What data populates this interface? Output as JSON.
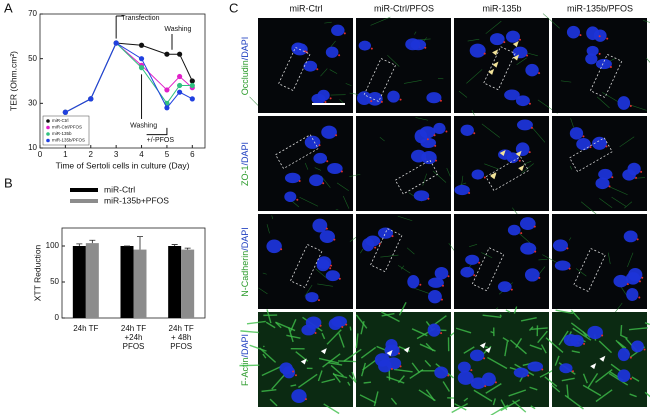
{
  "chart_data": [
    {
      "type": "line",
      "label": "A",
      "ylabel": "TER (Ohm.cm²)",
      "xlabel": "Time of Sertoli cells in culture (Day)",
      "x": [
        1,
        2,
        3,
        4,
        5,
        5.5,
        6
      ],
      "series": [
        {
          "name": "miR-Ctrl",
          "color": "#111111",
          "values": [
            26,
            32,
            57,
            56,
            52,
            52,
            40
          ]
        },
        {
          "name": "miR-Ctrl/PFOS",
          "color": "#e020c8",
          "values": [
            26,
            32,
            57,
            47,
            36,
            42,
            37
          ]
        },
        {
          "name": "miR-135b",
          "color": "#30c080",
          "values": [
            26,
            32,
            57,
            46,
            30,
            38,
            38
          ]
        },
        {
          "name": "miR-135b/PFOS",
          "color": "#2040e0",
          "values": [
            26,
            32,
            57,
            50,
            28,
            35,
            32
          ]
        }
      ],
      "xlim": [
        0,
        6.5
      ],
      "xticks": [
        0,
        1,
        2,
        3,
        4,
        5,
        6
      ],
      "ylim": [
        10,
        70
      ],
      "yticks": [
        10,
        30,
        50,
        70
      ],
      "annotations": [
        "Transfection",
        "Washing",
        "Washing",
        "+/-PFOS"
      ]
    },
    {
      "type": "bar",
      "label": "B",
      "ylabel": "XTT Reduction",
      "categories": [
        "24h TF",
        "24h TF\n+24h\nPFOS",
        "24h TF\n+ 48h\nPFOS"
      ],
      "series": [
        {
          "name": "miR-Ctrl",
          "color": "#000000",
          "values": [
            100,
            100,
            100
          ],
          "errors": [
            3,
            0,
            2
          ]
        },
        {
          "name": "miR-135b+PFOS",
          "color": "#8c8c8c",
          "values": [
            104,
            95,
            95
          ],
          "errors": [
            4,
            18,
            2
          ]
        }
      ],
      "ylim": [
        0,
        125
      ],
      "yticks": [
        0,
        50,
        100
      ]
    }
  ],
  "image_panel": {
    "label": "C",
    "columns": [
      "miR-Ctrl",
      "miR-Ctrl/PFOS",
      "miR-135b",
      "miR-135b/PFOS"
    ],
    "rows": [
      {
        "stain": "Occludin",
        "counterstain": "/DAPI"
      },
      {
        "stain": "ZO-1",
        "counterstain": "/DAPI"
      },
      {
        "stain": "N-Cadherin",
        "counterstain": "/DAPI"
      },
      {
        "stain": "F-Actin",
        "counterstain": "/DAPI"
      }
    ]
  }
}
